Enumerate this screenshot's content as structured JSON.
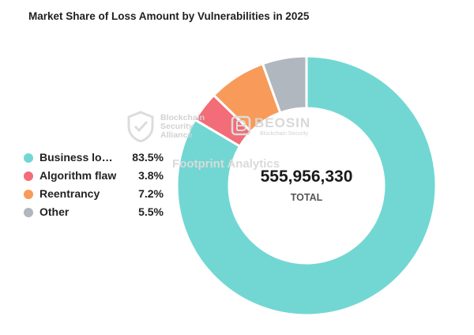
{
  "chart_data": {
    "type": "pie",
    "title": "Market Share of Loss Amount by Vulnerabilities in 2025",
    "categories": [
      "Business lo…",
      "Algorithm flaw",
      "Reentrancy",
      "Other"
    ],
    "values": [
      83.5,
      3.8,
      7.2,
      5.5
    ],
    "value_labels": [
      "83.5%",
      "3.8%",
      "7.2%",
      "5.5%"
    ],
    "colors": [
      "#72d7d3",
      "#f26d78",
      "#f89b5a",
      "#b1b7be"
    ],
    "donut": true,
    "center_value": "555,956,330",
    "center_label": "TOTAL",
    "legend_position": "left"
  },
  "watermarks": {
    "bsa_line1": "Blockchain",
    "bsa_line2": "Security",
    "bsa_line3": "Alliance",
    "beosin": "BEOSIN",
    "beosin_sub": "Blockchain Security",
    "footprint": "Footprint Analytics"
  }
}
